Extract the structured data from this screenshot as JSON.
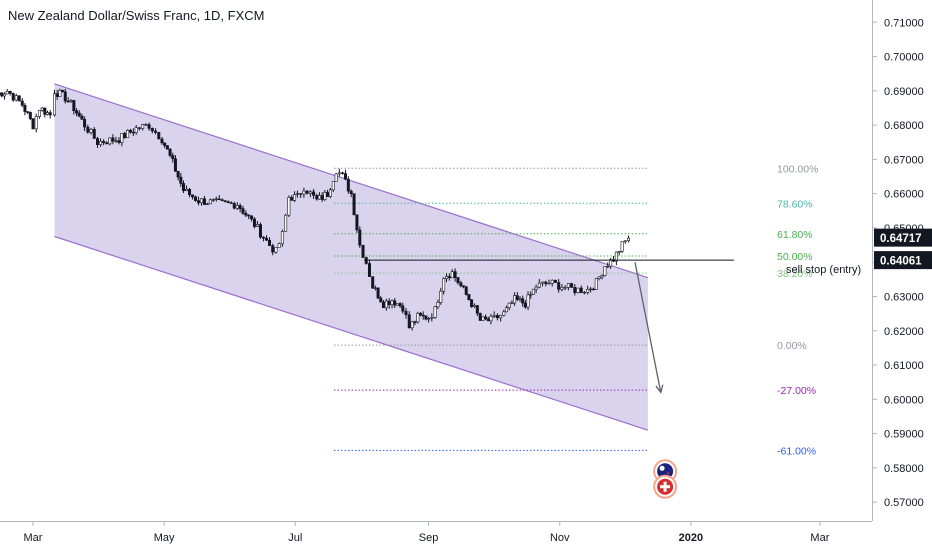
{
  "chart_data": {
    "type": "candlestick",
    "title": "New Zealand Dollar/Swiss Franc, 1D, FXCM",
    "ylim": [
      0.5645,
      0.7165
    ],
    "x_ticks": [
      {
        "label": "Mar",
        "x": 0
      },
      {
        "label": "May",
        "x": 61
      },
      {
        "label": "Jul",
        "x": 122
      },
      {
        "label": "Sep",
        "x": 184
      },
      {
        "label": "Nov",
        "x": 245
      },
      {
        "label": "2020",
        "x": 306,
        "bold": true
      },
      {
        "label": "Mar",
        "x": 366
      }
    ],
    "y_ticks": [
      0.57,
      0.58,
      0.59,
      0.6,
      0.61,
      0.62,
      0.63,
      0.64,
      0.65,
      0.66,
      0.67,
      0.68,
      0.69,
      0.7,
      0.71
    ],
    "y_tick_labels": [
      "0.57000",
      "0.58000",
      "0.59000",
      "0.60000",
      "0.61000",
      "0.62000",
      "0.63000",
      "0.64000",
      "0.65000",
      "0.66000",
      "0.67000",
      "0.68000",
      "0.69000",
      "0.70000",
      "0.71000"
    ],
    "price_keypoints": [
      [
        -17,
        0.689
      ],
      [
        -12,
        0.69
      ],
      [
        -5,
        0.686
      ],
      [
        0,
        0.68
      ],
      [
        3,
        0.685
      ],
      [
        8,
        0.683
      ],
      [
        10,
        0.69
      ],
      [
        15,
        0.688
      ],
      [
        19,
        0.685
      ],
      [
        24,
        0.68
      ],
      [
        30,
        0.675
      ],
      [
        40,
        0.676
      ],
      [
        48,
        0.679
      ],
      [
        54,
        0.68
      ],
      [
        60,
        0.676
      ],
      [
        65,
        0.669
      ],
      [
        70,
        0.661
      ],
      [
        77,
        0.658
      ],
      [
        88,
        0.657
      ],
      [
        95,
        0.657
      ],
      [
        103,
        0.651
      ],
      [
        110,
        0.645
      ],
      [
        113,
        0.643
      ],
      [
        116,
        0.648
      ],
      [
        119,
        0.659
      ],
      [
        123,
        0.659
      ],
      [
        126,
        0.662
      ],
      [
        132,
        0.658
      ],
      [
        137,
        0.66
      ],
      [
        141,
        0.667
      ],
      [
        144,
        0.665
      ],
      [
        148,
        0.66
      ],
      [
        152,
        0.645
      ],
      [
        155,
        0.64
      ],
      [
        158,
        0.633
      ],
      [
        163,
        0.628
      ],
      [
        167,
        0.629
      ],
      [
        172,
        0.627
      ],
      [
        175,
        0.621
      ],
      [
        179,
        0.624
      ],
      [
        184,
        0.624
      ],
      [
        187,
        0.626
      ],
      [
        191,
        0.636
      ],
      [
        195,
        0.637
      ],
      [
        199,
        0.633
      ],
      [
        204,
        0.628
      ],
      [
        208,
        0.623
      ],
      [
        213,
        0.623
      ],
      [
        219,
        0.625
      ],
      [
        224,
        0.629
      ],
      [
        229,
        0.628
      ],
      [
        234,
        0.633
      ],
      [
        240,
        0.634
      ],
      [
        246,
        0.633
      ],
      [
        252,
        0.632
      ],
      [
        258,
        0.632
      ],
      [
        262,
        0.634
      ],
      [
        266,
        0.639
      ],
      [
        270,
        0.641
      ],
      [
        274,
        0.645
      ],
      [
        277,
        0.647
      ]
    ],
    "channel": {
      "upper": [
        [
          10,
          0.692
        ],
        [
          286,
          0.6355
        ]
      ],
      "lower": [
        [
          10,
          0.6475
        ],
        [
          286,
          0.591
        ]
      ]
    },
    "fibonacci": {
      "x_range": [
        140,
        286
      ],
      "levels": [
        {
          "label": "100.00%",
          "value": 0.6674,
          "color": "#9598a1"
        },
        {
          "label": "78.60%",
          "value": 0.6572,
          "color": "#4db6ac"
        },
        {
          "label": "61.80%",
          "value": 0.6483,
          "color": "#4caf50"
        },
        {
          "label": "50.00%",
          "value": 0.6418,
          "color": "#4caf50"
        },
        {
          "label": "38.20%",
          "value": 0.6368,
          "color": "#81c784"
        },
        {
          "label": "0.00%",
          "value": 0.6158,
          "color": "#9598a1"
        },
        {
          "label": "-27.00%",
          "value": 0.6027,
          "color": "#9c27b0"
        },
        {
          "label": "-61.00%",
          "value": 0.5851,
          "color": "#2962ff"
        }
      ]
    },
    "sell_stop": {
      "label": "sell stop (entry)",
      "value": 0.64061,
      "x_range": [
        154,
        326
      ]
    },
    "arrow": {
      "from": [
        280,
        0.64
      ],
      "to": [
        292,
        0.602
      ]
    },
    "price_tags": [
      {
        "label": "0.64717",
        "value": 0.64717
      },
      {
        "label": "0.64061",
        "value": 0.64061
      }
    ],
    "event_icons": [
      {
        "name": "nz-flag-icon",
        "x": 294,
        "value": 0.579
      },
      {
        "name": "swiss-flag-icon",
        "x": 294,
        "value": 0.5745
      }
    ]
  }
}
